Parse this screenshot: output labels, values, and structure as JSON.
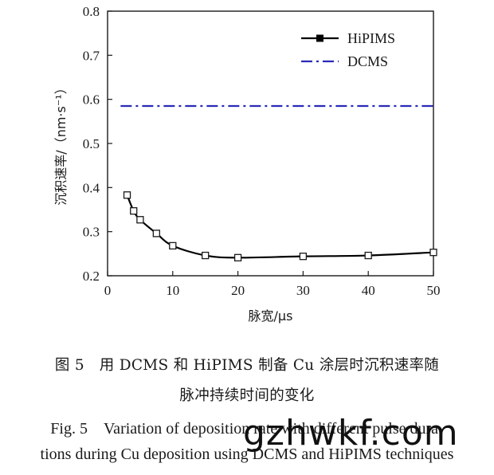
{
  "chart_data": {
    "type": "line",
    "xlabel": "脉宽/μs",
    "ylabel": "沉积速率/（nm·s⁻¹）",
    "xlim": [
      0,
      50
    ],
    "ylim": [
      0.2,
      0.8
    ],
    "xticks": [
      0,
      10,
      20,
      30,
      40,
      50
    ],
    "yticks": [
      0.2,
      0.3,
      0.4,
      0.5,
      0.6,
      0.7,
      0.8
    ],
    "grid": false,
    "legend_position": "top-right",
    "series": [
      {
        "name": "HiPIMS",
        "style": "solid-square-markers",
        "color": "#000000",
        "x": [
          3,
          4,
          5,
          7.5,
          10,
          15,
          20,
          30,
          40,
          50
        ],
        "y": [
          0.383,
          0.347,
          0.327,
          0.296,
          0.268,
          0.246,
          0.241,
          0.244,
          0.246,
          0.253
        ]
      },
      {
        "name": "DCMS",
        "style": "dash-dot",
        "color": "#2a2ab8",
        "x": [
          2,
          50
        ],
        "y": [
          0.585,
          0.585
        ]
      }
    ]
  },
  "caption": {
    "cn_line1": "图 5　用 DCMS 和 HiPIMS 制备 Cu 涂层时沉积速率随",
    "cn_line2": "脉冲持续时间的变化",
    "en_line1": "Fig. 5　Variation of deposition rate with different pulse dura-",
    "en_line2": "tions during Cu deposition using DCMS and HiPIMS techniques"
  },
  "watermark": "gzhwkf.com"
}
